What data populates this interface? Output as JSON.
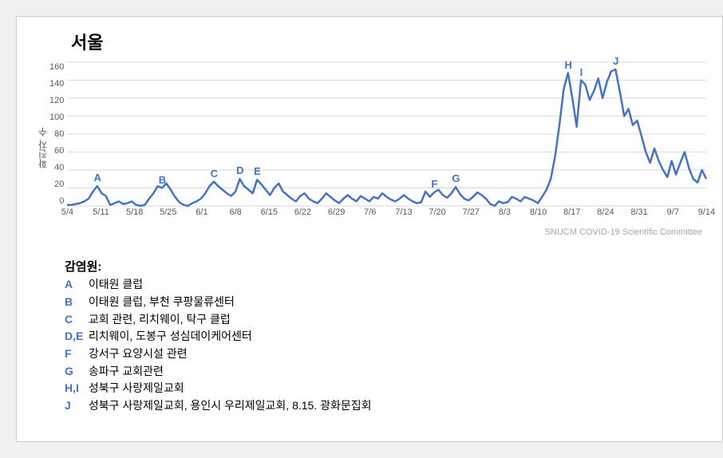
{
  "title": "서울",
  "ylabel": "확진자 수",
  "attribution": "SNUCM COVID-19 Scientific Committee",
  "legend_title": "감염원:",
  "chart": {
    "type": "line",
    "line_color": "#4472c4",
    "line_width": 2.5,
    "background_color": "#ffffff",
    "grid_color": "#d9d9d9",
    "axis_color": "#d9d9d9",
    "ylim": [
      0,
      160
    ],
    "ytick_step": 20,
    "yticks": [
      160,
      140,
      120,
      100,
      80,
      60,
      40,
      20,
      0
    ],
    "xticks": [
      "5/4",
      "5/11",
      "5/18",
      "5/25",
      "6/1",
      "6/8",
      "6/15",
      "6/22",
      "6/29",
      "7/6",
      "7/13",
      "7/20",
      "7/27",
      "8/3",
      "8/10",
      "8/17",
      "8/24",
      "8/31",
      "9/7",
      "9/14"
    ],
    "values": [
      1,
      1,
      2,
      3,
      5,
      8,
      16,
      22,
      14,
      11,
      1,
      3,
      5,
      2,
      3,
      5,
      1,
      0,
      1,
      8,
      14,
      22,
      20,
      25,
      18,
      10,
      4,
      1,
      0,
      3,
      5,
      8,
      14,
      22,
      27,
      22,
      18,
      14,
      11,
      16,
      30,
      22,
      18,
      14,
      29,
      24,
      18,
      12,
      20,
      25,
      16,
      12,
      8,
      5,
      11,
      14,
      8,
      5,
      3,
      8,
      14,
      10,
      6,
      3,
      8,
      12,
      8,
      5,
      11,
      8,
      5,
      10,
      8,
      14,
      10,
      7,
      5,
      8,
      12,
      8,
      5,
      3,
      4,
      16,
      10,
      15,
      18,
      12,
      9,
      14,
      21,
      13,
      8,
      6,
      10,
      15,
      12,
      8,
      2,
      0,
      5,
      3,
      4,
      10,
      8,
      5,
      10,
      8,
      6,
      3,
      10,
      18,
      30,
      55,
      90,
      130,
      148,
      120,
      88,
      140,
      135,
      118,
      128,
      142,
      120,
      138,
      150,
      152,
      127,
      100,
      108,
      90,
      95,
      78,
      60,
      48,
      64,
      50,
      40,
      32,
      50,
      35,
      48,
      60,
      42,
      30,
      26,
      40,
      30
    ],
    "annotations": [
      {
        "label": "A",
        "x_idx": 7,
        "y_offset": -18
      },
      {
        "label": "B",
        "x_idx": 22,
        "y_offset": -18
      },
      {
        "label": "C",
        "x_idx": 34,
        "y_offset": -18
      },
      {
        "label": "D",
        "x_idx": 40,
        "y_offset": -18
      },
      {
        "label": "E",
        "x_idx": 44,
        "y_offset": -18
      },
      {
        "label": "F",
        "x_idx": 85,
        "y_offset": -18
      },
      {
        "label": "G",
        "x_idx": 90,
        "y_offset": -18
      },
      {
        "label": "H",
        "x_idx": 116,
        "y_offset": -18
      },
      {
        "label": "I",
        "x_idx": 119,
        "y_offset": -18
      },
      {
        "label": "J",
        "x_idx": 127,
        "y_offset": -18
      }
    ]
  },
  "legend": [
    {
      "tag": "A",
      "text": "이태원 클럽"
    },
    {
      "tag": "B",
      "text": "이태원 클럽, 부천 쿠팡물류센터"
    },
    {
      "tag": "C",
      "text": "교회 관련, 리치웨이, 탁구 클럽"
    },
    {
      "tag": "D,E",
      "text": "리치웨이, 도봉구 성심데이케어센터"
    },
    {
      "tag": "F",
      "text": "강서구 요양시설 관련"
    },
    {
      "tag": "G",
      "text": "송파구 교회관련"
    },
    {
      "tag": "H,I",
      "text": "성북구 사랑제일교회"
    },
    {
      "tag": "J",
      "text": "성북구 사랑제일교회, 용인시 우리제일교회, 8.15. 광화문집회"
    }
  ]
}
